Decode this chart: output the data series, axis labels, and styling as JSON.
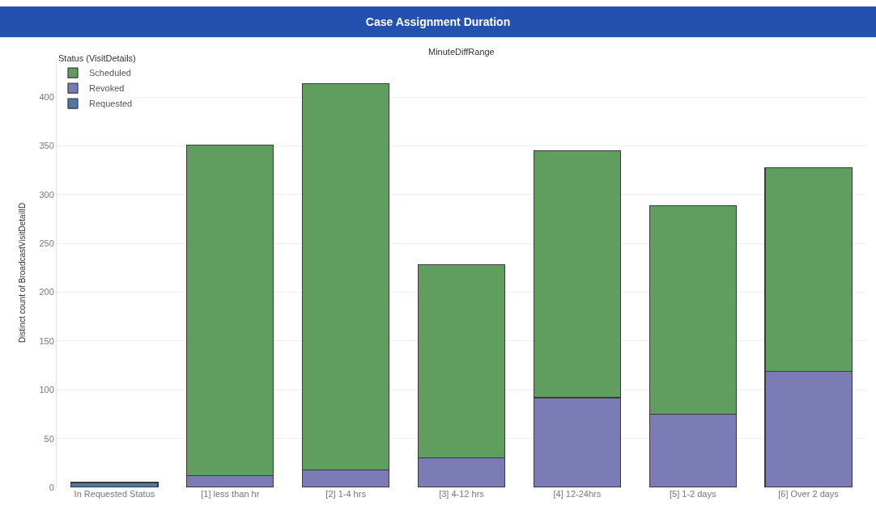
{
  "chart_data": {
    "type": "bar",
    "title": "Case Assignment Duration",
    "xlabel": "MinuteDiffRange",
    "ylabel": "Distinct count of BroadcastVisitDetailID",
    "legend_title": "Status (VisitDetails)",
    "categories": [
      "In Requested Status",
      "[1] less than hr",
      "[2] 1-4 hrs",
      "[3] 4-12 hrs",
      "[4] 12-24hrs",
      "[5] 1-2 days",
      "[6] Over 2 days"
    ],
    "series": [
      {
        "name": "Requested",
        "color": "#4e79a7",
        "values": [
          5,
          null,
          null,
          null,
          null,
          null,
          null
        ]
      },
      {
        "name": "Revoked",
        "color": "#7b7bb5",
        "values": [
          null,
          12,
          18,
          30,
          92,
          75,
          119
        ]
      },
      {
        "name": "Scheduled",
        "color": "#5f9e5f",
        "values": [
          null,
          339,
          396,
          198,
          253,
          214,
          209
        ]
      }
    ],
    "stacked": true,
    "ylim": [
      0,
      440
    ],
    "yticks": [
      0,
      50,
      100,
      150,
      200,
      250,
      300,
      350,
      400
    ],
    "grid": "y",
    "legend": "top left"
  }
}
